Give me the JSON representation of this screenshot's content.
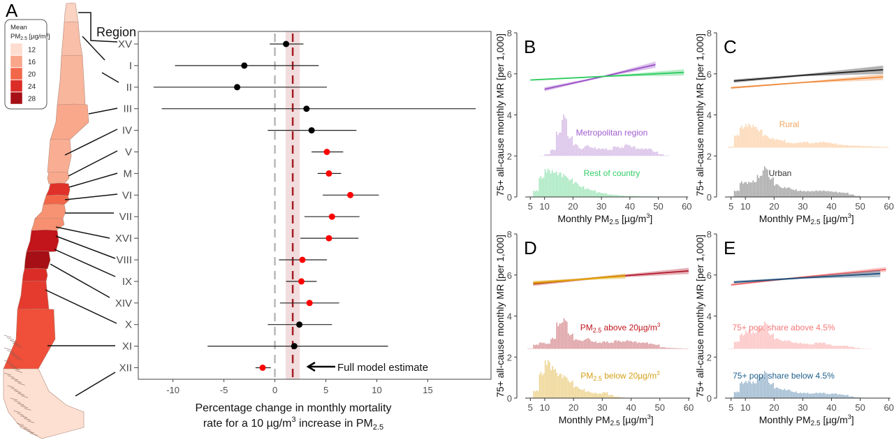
{
  "panel_labels": {
    "a": "A",
    "b": "B",
    "c": "C",
    "d": "D",
    "e": "E"
  },
  "map": {
    "region_header": "Region",
    "legend": {
      "title_line1": "Mean",
      "title_pm": "PM",
      "title_sub": "2.5",
      "title_unit": " [µg/m",
      "title_sup": "3",
      "title_close": "]",
      "items": [
        {
          "label": "12",
          "color": "#fdddd0"
        },
        {
          "label": "16",
          "color": "#f9a68a"
        },
        {
          "label": "20",
          "color": "#f26749"
        },
        {
          "label": "24",
          "color": "#dc2c27"
        },
        {
          "label": "28",
          "color": "#a50f15"
        }
      ]
    },
    "regions": [
      {
        "name": "XV",
        "color": "#fbd3c2"
      },
      {
        "name": "I",
        "color": "#f9bfa8"
      },
      {
        "name": "II",
        "color": "#f8b69c"
      },
      {
        "name": "III",
        "color": "#f9a88c"
      },
      {
        "name": "IV",
        "color": "#f9ae93"
      },
      {
        "name": "V",
        "color": "#f8a88c"
      },
      {
        "name": "M",
        "color": "#e0302a"
      },
      {
        "name": "VI",
        "color": "#f26749"
      },
      {
        "name": "VII",
        "color": "#f79373"
      },
      {
        "name": "XVI",
        "color": "#f79070"
      },
      {
        "name": "VIII",
        "color": "#c2141b"
      },
      {
        "name": "IX",
        "color": "#a50f15"
      },
      {
        "name": "XIV",
        "color": "#dc2c27"
      },
      {
        "name": "X",
        "color": "#e53a2e"
      },
      {
        "name": "XI",
        "color": "#f04f3a"
      },
      {
        "name": "XII",
        "color": "#fde0d2"
      }
    ]
  },
  "chart_data": [
    {
      "id": "A",
      "type": "forest",
      "xlabel_line1": "Percentage change in monthly mortality",
      "xlabel_line2_pre": "rate for a 10   µg/m",
      "xlabel_line2_sup": "3",
      "xlabel_line2_mid": " increase in   PM",
      "xlabel_line2_sub": "2.5",
      "xlim": [
        -13.4,
        21.2
      ],
      "xticks": [
        "-10",
        "-5",
        "0",
        "5",
        "10",
        "15"
      ],
      "reference_line": 0,
      "full_model": {
        "estimate": 1.75,
        "lower": 1.05,
        "upper": 2.45,
        "label": "Full model estimate",
        "color": "#a51c24"
      },
      "significant_color": "#ff0000",
      "nonsignificant_color": "#000000",
      "rows": [
        {
          "region": "XV",
          "estimate": 1.1,
          "lower": -0.5,
          "upper": 2.8,
          "significant": false
        },
        {
          "region": "I",
          "estimate": -3.0,
          "lower": -9.8,
          "upper": 4.3,
          "significant": false
        },
        {
          "region": "II",
          "estimate": -3.7,
          "lower": -11.9,
          "upper": 5.1,
          "significant": false
        },
        {
          "region": "III",
          "estimate": 3.1,
          "lower": -11.1,
          "upper": 19.7,
          "significant": false
        },
        {
          "region": "IV",
          "estimate": 3.6,
          "lower": -0.7,
          "upper": 8.0,
          "significant": false
        },
        {
          "region": "V",
          "estimate": 5.1,
          "lower": 3.6,
          "upper": 6.7,
          "significant": true
        },
        {
          "region": "M",
          "estimate": 5.3,
          "lower": 4.2,
          "upper": 6.5,
          "significant": true
        },
        {
          "region": "VI",
          "estimate": 7.4,
          "lower": 4.7,
          "upper": 10.2,
          "significant": true
        },
        {
          "region": "VII",
          "estimate": 5.6,
          "lower": 2.9,
          "upper": 8.3,
          "significant": true
        },
        {
          "region": "XVI",
          "estimate": 5.3,
          "lower": 2.5,
          "upper": 8.2,
          "significant": true
        },
        {
          "region": "VIII",
          "estimate": 2.7,
          "lower": 0.4,
          "upper": 5.1,
          "significant": true
        },
        {
          "region": "IX",
          "estimate": 2.6,
          "lower": 1.1,
          "upper": 4.1,
          "significant": true
        },
        {
          "region": "XIV",
          "estimate": 3.4,
          "lower": 0.5,
          "upper": 6.3,
          "significant": true
        },
        {
          "region": "X",
          "estimate": 2.4,
          "lower": -0.7,
          "upper": 5.6,
          "significant": false
        },
        {
          "region": "XI",
          "estimate": 1.9,
          "lower": -6.6,
          "upper": 11.1,
          "significant": false
        },
        {
          "region": "XII",
          "estimate": -1.2,
          "lower": -1.9,
          "upper": -0.4,
          "significant": true
        }
      ]
    },
    {
      "id": "B",
      "type": "line+histogram",
      "ylabel": "75+ all-cause monthly MR [per 1,000]",
      "xlabel_pre": "Monthly PM",
      "xlabel_sub": "2.5",
      "xlabel_unit": " [µg/m",
      "xlabel_sup": "3",
      "xlabel_close": "]",
      "xticks": [
        "5",
        "10",
        "20",
        "30",
        "40",
        "50",
        "60"
      ],
      "yticks": [
        "0",
        "2",
        "4",
        "6",
        "8"
      ],
      "ylim": [
        0,
        8
      ],
      "xlim": [
        3,
        60
      ],
      "hist_bin_start": 4,
      "hist_bin_width": 2,
      "series": [
        {
          "name": "Metropolitan region",
          "label_pre": "Metropolitan region",
          "line_color": "#9a4fc7",
          "hist_color": "#d9c0e8",
          "label_color": "#a05ccf",
          "hist_baseline": 2.0,
          "x": [
            10,
            30,
            49
          ],
          "y": [
            5.25,
            5.85,
            6.45
          ],
          "lower": [
            5.15,
            5.82,
            6.3
          ],
          "upper": [
            5.35,
            5.88,
            6.6
          ],
          "hist": [
            0,
            0,
            0.01,
            0.08,
            0.3,
            1.1,
            1.9,
            0.9,
            0.55,
            0.35,
            0.5,
            0.4,
            0.35,
            0.35,
            0.3,
            0.45,
            0.4,
            0.55,
            0.45,
            0.35,
            0.35,
            0.35,
            0.2,
            0.08,
            0.02,
            0,
            0,
            0
          ]
        },
        {
          "name": "Rest of country",
          "label_pre": "Rest of country",
          "line_color": "#2ecc60",
          "hist_color": "#a8e8c0",
          "label_color": "#33cc66",
          "hist_baseline": 0,
          "x": [
            5,
            30,
            59
          ],
          "y": [
            5.7,
            5.87,
            6.07
          ],
          "lower": [
            5.67,
            5.85,
            5.92
          ],
          "upper": [
            5.73,
            5.89,
            6.22
          ],
          "hist": [
            0.02,
            0.3,
            0.95,
            1.3,
            1.22,
            1.15,
            1.05,
            0.85,
            0.7,
            0.5,
            0.4,
            0.32,
            0.22,
            0.18,
            0.12,
            0.1,
            0.07,
            0.05,
            0.05,
            0.04,
            0.03,
            0.03,
            0.02,
            0.02,
            0.01,
            0.01,
            0.01,
            0.01
          ]
        }
      ]
    },
    {
      "id": "C",
      "type": "line+histogram",
      "ylabel": "75+ all-cause monthly MR [per 1,000]",
      "xlabel_pre": "Monthly PM",
      "xlabel_sub": "2.5",
      "xlabel_unit": " [µg/m",
      "xlabel_sup": "3",
      "xlabel_close": "]",
      "xticks": [
        "5",
        "10",
        "20",
        "30",
        "40",
        "50",
        "60"
      ],
      "yticks": [
        "0",
        "2",
        "4",
        "6",
        "8"
      ],
      "ylim": [
        0,
        8
      ],
      "xlim": [
        3,
        60
      ],
      "hist_bin_start": 4,
      "hist_bin_width": 2,
      "series": [
        {
          "name": "Rural",
          "label_pre": "Rural",
          "line_color": "#f08a3c",
          "hist_color": "#fcd7b4",
          "label_color": "#f4a460",
          "hist_baseline": 2.4,
          "x": [
            5,
            30,
            58
          ],
          "y": [
            5.32,
            5.58,
            5.85
          ],
          "lower": [
            5.27,
            5.55,
            5.7
          ],
          "upper": [
            5.37,
            5.61,
            6.0
          ],
          "hist": [
            0.05,
            0.6,
            1.0,
            1.1,
            1.05,
            0.85,
            0.6,
            0.45,
            0.4,
            0.35,
            0.25,
            0.22,
            0.25,
            0.28,
            0.22,
            0.25,
            0.28,
            0.25,
            0.2,
            0.15,
            0.12,
            0.1,
            0.1,
            0.08,
            0.07,
            0.06,
            0.05,
            0.04
          ]
        },
        {
          "name": "Urban",
          "label_pre": "Urban",
          "line_color": "#222222",
          "hist_color": "#a8a8a8",
          "label_color": "#333333",
          "hist_baseline": 0,
          "x": [
            6,
            30,
            58
          ],
          "y": [
            5.65,
            5.93,
            6.2
          ],
          "lower": [
            5.57,
            5.88,
            6.0
          ],
          "upper": [
            5.73,
            5.98,
            6.4
          ],
          "hist": [
            0.02,
            0.3,
            0.7,
            0.7,
            0.75,
            1.0,
            1.4,
            0.9,
            0.6,
            0.45,
            0.45,
            0.35,
            0.3,
            0.28,
            0.28,
            0.3,
            0.3,
            0.28,
            0.25,
            0.22,
            0.2,
            0.12,
            0.05,
            0.01,
            0,
            0,
            0,
            0
          ]
        }
      ]
    },
    {
      "id": "D",
      "type": "line+histogram",
      "ylabel": "75+ all-cause monthly MR [per 1,000]",
      "xlabel_pre": "Monthly PM",
      "xlabel_sub": "2.5",
      "xlabel_unit": " [µg/m",
      "xlabel_sup": "3",
      "xlabel_close": "]",
      "xticks": [
        "5",
        "10",
        "20",
        "30",
        "40",
        "50",
        "60"
      ],
      "yticks": [
        "0",
        "2",
        "4",
        "6",
        "8"
      ],
      "ylim": [
        0,
        8
      ],
      "xlim": [
        3,
        60
      ],
      "hist_bin_start": 4,
      "hist_bin_width": 2,
      "series": [
        {
          "name": "PM2.5 above 20µg/m3",
          "label_pre": "PM",
          "label_sub": "2.5",
          "label_post": " above 20µg/m",
          "label_sup": "3",
          "line_color": "#b2182b",
          "hist_color": "#dc9ca0",
          "label_color": "#c0141b",
          "hist_baseline": 2.4,
          "x": [
            6,
            30,
            60
          ],
          "y": [
            5.57,
            5.88,
            6.2
          ],
          "lower": [
            5.47,
            5.84,
            6.05
          ],
          "upper": [
            5.67,
            5.92,
            6.35
          ],
          "hist": [
            0.02,
            0.2,
            0.3,
            0.25,
            0.5,
            1.2,
            1.4,
            0.7,
            0.45,
            0.4,
            0.5,
            0.35,
            0.3,
            0.35,
            0.3,
            0.4,
            0.35,
            0.4,
            0.35,
            0.3,
            0.3,
            0.25,
            0.2,
            0.08,
            0.05,
            0.04,
            0.03,
            0.02
          ]
        },
        {
          "name": "PM2.5 below 20µg/m3",
          "label_pre": "PM",
          "label_sub": "2.5",
          "label_post": " below 20µg/m",
          "label_sup": "3",
          "line_color": "#e0a800",
          "hist_color": "#eed593",
          "label_color": "#d4a017",
          "hist_baseline": 0,
          "x": [
            6,
            22,
            38
          ],
          "y": [
            5.62,
            5.78,
            5.95
          ],
          "lower": [
            5.52,
            5.74,
            5.82
          ],
          "upper": [
            5.72,
            5.82,
            6.08
          ],
          "hist": [
            0.02,
            0.35,
            1.2,
            1.75,
            1.45,
            1.15,
            1.05,
            0.8,
            0.55,
            0.42,
            0.32,
            0.25,
            0.22,
            0.28,
            0.15,
            0.07,
            0.03,
            0,
            0,
            0,
            0,
            0,
            0,
            0,
            0,
            0,
            0,
            0
          ]
        }
      ]
    },
    {
      "id": "E",
      "type": "line+histogram",
      "ylabel": "75+ all-cause monthly MR [per 1,000]",
      "xlabel_pre": "Monthly PM",
      "xlabel_sub": "2.5",
      "xlabel_unit": " [µg/m",
      "xlabel_sup": "3",
      "xlabel_close": "]",
      "xticks": [
        "5",
        "10",
        "20",
        "30",
        "40",
        "50",
        "60"
      ],
      "yticks": [
        "0",
        "2",
        "4",
        "6",
        "8"
      ],
      "ylim": [
        0,
        8
      ],
      "xlim": [
        3,
        60
      ],
      "hist_bin_start": 4,
      "hist_bin_width": 2,
      "series": [
        {
          "name": "75+ pop. share above 4.5%",
          "label_pre": "75+ pop. share above 4.5%",
          "line_color": "#f26a6a",
          "hist_color": "#fcc4c4",
          "label_color": "#f77777",
          "hist_baseline": 2.4,
          "x": [
            5,
            30,
            59
          ],
          "y": [
            5.52,
            5.9,
            6.27
          ],
          "lower": [
            5.47,
            5.87,
            6.15
          ],
          "upper": [
            5.57,
            5.93,
            6.39
          ],
          "hist": [
            0.02,
            0.35,
            0.7,
            0.85,
            0.8,
            1.0,
            1.25,
            0.7,
            0.5,
            0.4,
            0.4,
            0.3,
            0.28,
            0.25,
            0.22,
            0.3,
            0.3,
            0.22,
            0.15,
            0.15,
            0.15,
            0.1,
            0.05,
            0.02,
            0.01,
            0,
            0,
            0
          ]
        },
        {
          "name": "75+ pop. share below 4.5%",
          "label_pre": "75+ pop. share below 4.5%",
          "line_color": "#1f4e79",
          "hist_color": "#9fbad0",
          "label_color": "#1f5f8b",
          "hist_baseline": 0,
          "x": [
            6,
            30,
            57
          ],
          "y": [
            5.65,
            5.86,
            6.07
          ],
          "lower": [
            5.58,
            5.82,
            5.9
          ],
          "upper": [
            5.72,
            5.9,
            6.24
          ],
          "hist": [
            0.02,
            0.3,
            0.75,
            0.8,
            0.75,
            1.0,
            1.25,
            0.7,
            0.5,
            0.42,
            0.4,
            0.3,
            0.25,
            0.25,
            0.22,
            0.25,
            0.25,
            0.2,
            0.22,
            0.18,
            0.15,
            0.08,
            0.04,
            0.02,
            0,
            0,
            0,
            0
          ]
        }
      ]
    }
  ]
}
